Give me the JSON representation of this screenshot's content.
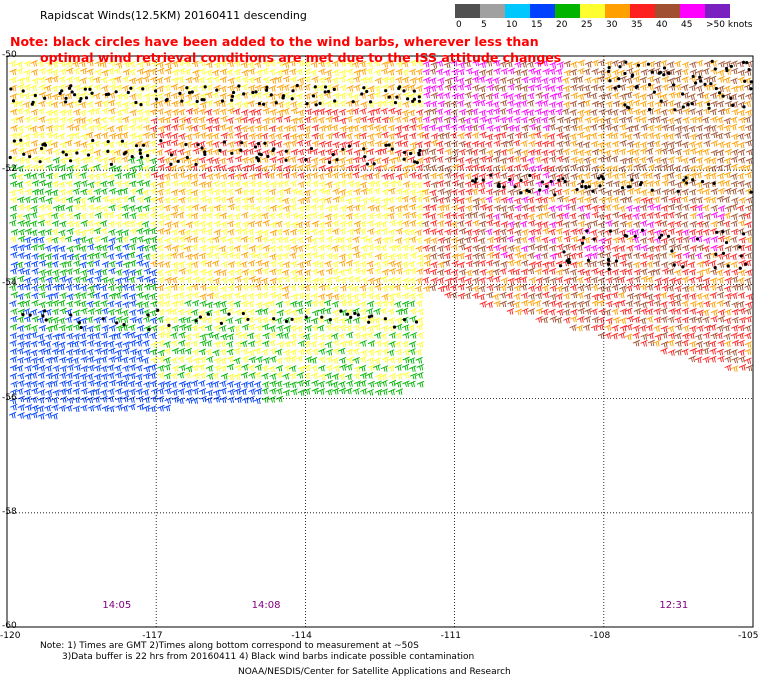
{
  "header": {
    "title": "Rapidscat Winds(12.5KM) 20160411 descending",
    "note_line1": "Note: black circles have been added to the wind barbs, wherever less than",
    "note_line2": "optimal wind retrieval conditions are met due to the ISS attitude changes"
  },
  "legend": {
    "unit": "knots",
    "bins": [
      {
        "label": "0",
        "color": "#505050"
      },
      {
        "label": "5",
        "color": "#a0a0a0"
      },
      {
        "label": "10",
        "color": "#00c8ff"
      },
      {
        "label": "15",
        "color": "#0040ff"
      },
      {
        "label": "20",
        "color": "#00b400"
      },
      {
        "label": "25",
        "color": "#ffff30"
      },
      {
        "label": "30",
        "color": "#ffa000"
      },
      {
        "label": "35",
        "color": "#ff2020"
      },
      {
        "label": "40",
        "color": "#a05030"
      },
      {
        "label": "45",
        "color": "#ff00ff"
      },
      {
        "label": ">50 knots",
        "color": "#7a20c0"
      }
    ]
  },
  "map": {
    "lon_range": [
      -120,
      -105
    ],
    "lat_range": [
      -60,
      -50
    ],
    "x_ticks": [
      "-120",
      "-117",
      "-114",
      "-111",
      "-108",
      "-105"
    ],
    "y_ticks": [
      "-50",
      "-52",
      "-54",
      "-56",
      "-58",
      "-60"
    ],
    "grid": "dotted",
    "time_labels": [
      {
        "text": "14:05",
        "lon": -117.8
      },
      {
        "text": "14:08",
        "lon": -114.8
      },
      {
        "text": "12:31",
        "lon": -106.6
      }
    ]
  },
  "footer": {
    "note_line1": "Note: 1) Times are GMT 2)Times along bottom correspond to measurement at ~50S",
    "note_line2": "3)Data buffer is 22 hrs from 20160411 4) Black wind barbs indicate possible contamination",
    "credit": "NOAA/NESDIS/Center for Satellite Applications and Research"
  }
}
